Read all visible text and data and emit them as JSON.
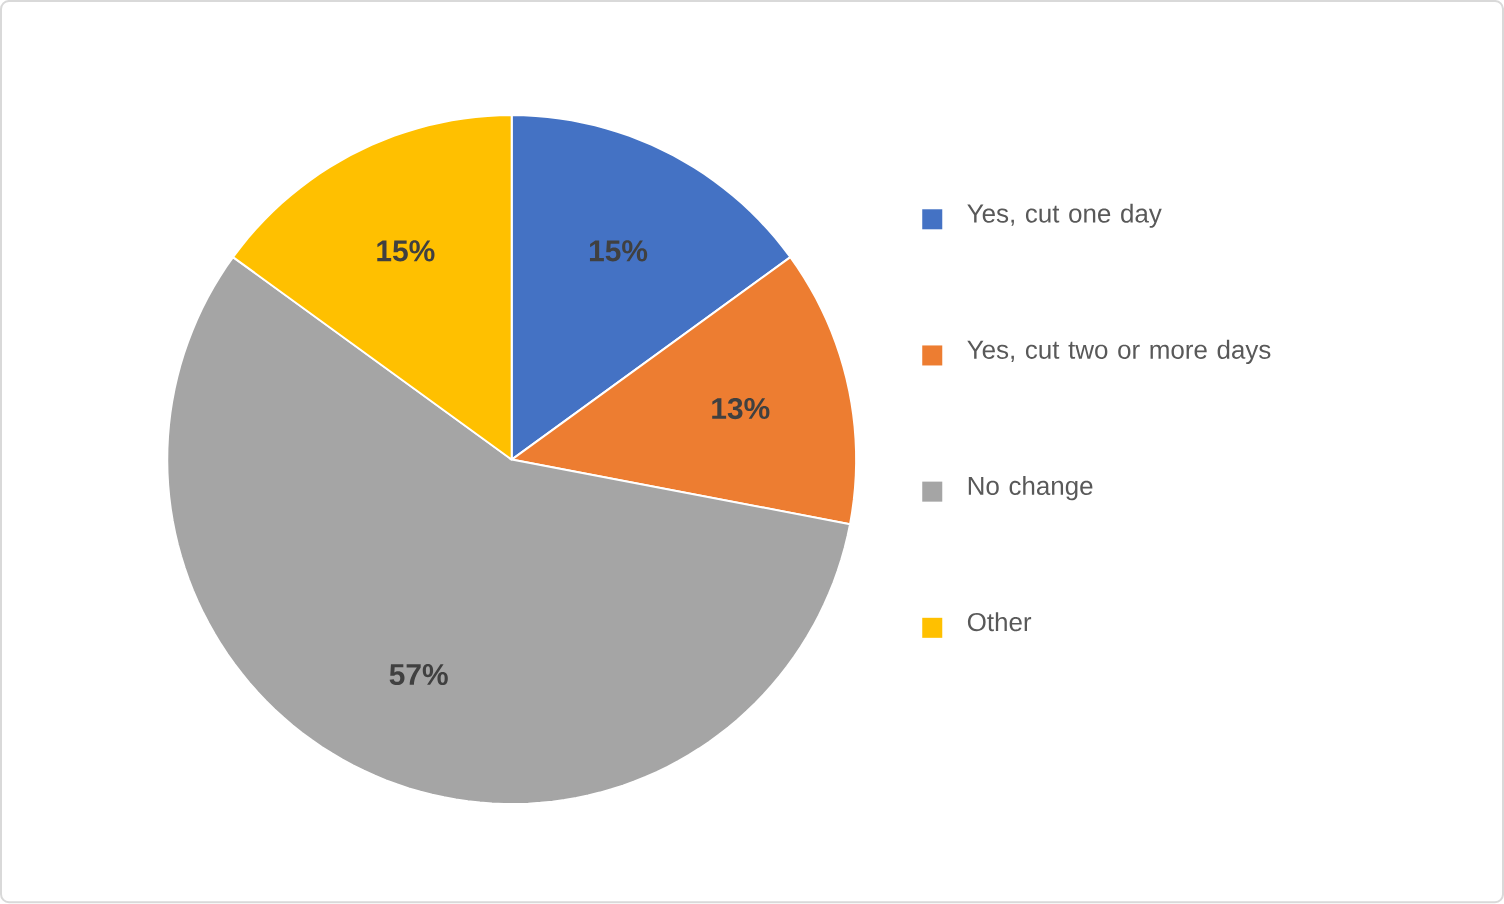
{
  "chart_data": {
    "type": "pie",
    "categories": [
      "Yes, cut one day",
      "Yes, cut two or more days",
      "No change",
      "Other"
    ],
    "values": [
      15,
      13,
      57,
      15
    ],
    "value_labels": [
      "15%",
      "13%",
      "57%",
      "15%"
    ],
    "colors": [
      "#4472c4",
      "#ed7d31",
      "#a5a5a5",
      "#ffc000"
    ],
    "legend": "right"
  }
}
